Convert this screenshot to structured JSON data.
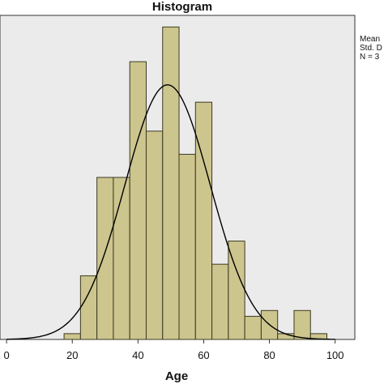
{
  "chart_data": {
    "type": "bar",
    "title": "Histogram",
    "xlabel": "Age",
    "ylabel": "",
    "xlim": [
      -2,
      106
    ],
    "ylim": [
      0,
      28
    ],
    "x_ticks": [
      0,
      20,
      40,
      60,
      80,
      100
    ],
    "bin_width": 5,
    "bins": [
      {
        "start": 17.5,
        "count": 0.5
      },
      {
        "start": 22.5,
        "count": 5.5
      },
      {
        "start": 27.5,
        "count": 14
      },
      {
        "start": 32.5,
        "count": 14
      },
      {
        "start": 37.5,
        "count": 24
      },
      {
        "start": 42.5,
        "count": 18
      },
      {
        "start": 47.5,
        "count": 27
      },
      {
        "start": 52.5,
        "count": 16
      },
      {
        "start": 57.5,
        "count": 20.5
      },
      {
        "start": 62.5,
        "count": 6.5
      },
      {
        "start": 67.5,
        "count": 8.5
      },
      {
        "start": 72.5,
        "count": 2
      },
      {
        "start": 77.5,
        "count": 2.5
      },
      {
        "start": 82.5,
        "count": 0.5
      },
      {
        "start": 87.5,
        "count": 2.5
      },
      {
        "start": 92.5,
        "count": 0.5
      }
    ],
    "normal_curve": {
      "mean": 49,
      "sd": 13,
      "peak": 22
    },
    "grid": false,
    "legend_position": "top-right",
    "legend_lines": [
      "Mean",
      "Std. D",
      "N = 3"
    ],
    "colors": {
      "bar_fill": "#cdc58e",
      "bar_stroke": "#3a3a20",
      "plot_background": "#ebebeb",
      "curve": "#000000"
    }
  }
}
